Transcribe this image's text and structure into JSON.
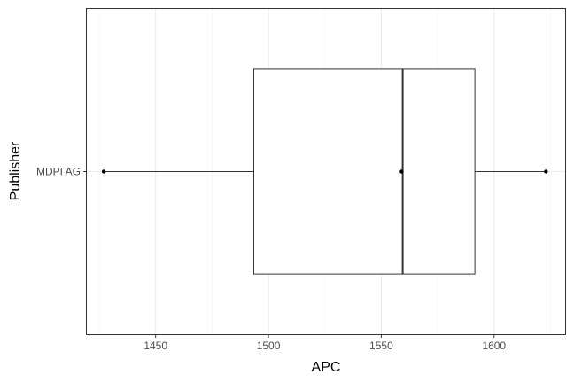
{
  "chart_data": {
    "type": "boxplot",
    "orientation": "horizontal",
    "title": "",
    "xlabel": "APC",
    "ylabel": "Publisher",
    "xlim": [
      1419.5,
      1631.5
    ],
    "x_ticks": [
      1450,
      1500,
      1550,
      1600
    ],
    "x_tick_labels": [
      "1450",
      "1500",
      "1550",
      "1600"
    ],
    "grid": true,
    "legend": "none",
    "categories": [
      "MDPI AG"
    ],
    "boxes": [
      {
        "category": "MDPI AG",
        "min": 1427,
        "q1": 1493.5,
        "median": 1559.5,
        "q3": 1591.5,
        "max": 1623
      }
    ],
    "points": [
      {
        "category": "MDPI AG",
        "x": 1427
      },
      {
        "category": "MDPI AG",
        "x": 1559
      },
      {
        "category": "MDPI AG",
        "x": 1623
      }
    ],
    "colors": {
      "panel_border": "#333333",
      "grid_major": "#ebebeb",
      "grid_minor": "#f2f2f2",
      "box_stroke": "#333333",
      "box_fill": "#ffffff",
      "point": "#000000"
    }
  }
}
